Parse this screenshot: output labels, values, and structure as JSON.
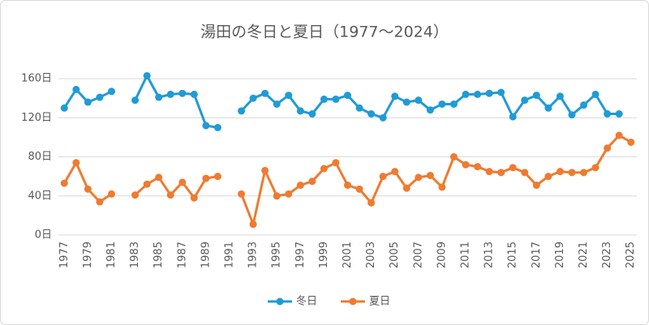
{
  "chart_data": {
    "type": "line",
    "title": "湯田の冬日と夏日（1977～2024）",
    "categories": [
      "1977",
      null,
      "1979",
      null,
      "1981",
      null,
      "1983",
      null,
      "1985",
      null,
      "1987",
      null,
      "1989",
      null,
      "1991",
      null,
      "1993",
      null,
      "1995",
      null,
      "1997",
      null,
      "1999",
      null,
      "2001",
      null,
      "2003",
      null,
      "2005",
      null,
      "2007",
      null,
      "2009",
      null,
      "2011",
      null,
      "2013",
      null,
      "2015",
      null,
      "2017",
      null,
      "2019",
      null,
      "2021",
      null,
      "2023",
      null,
      "2025"
    ],
    "series": [
      {
        "name": "冬日",
        "color": "#1f9bd7",
        "values": [
          130,
          149,
          136,
          141,
          147,
          null,
          138,
          163,
          141,
          144,
          145,
          144,
          112,
          110,
          null,
          127,
          140,
          145,
          134,
          143,
          127,
          124,
          139,
          139,
          143,
          130,
          124,
          120,
          142,
          136,
          138,
          128,
          134,
          134,
          144,
          144,
          145,
          146,
          121,
          138,
          143,
          130,
          142,
          123,
          133,
          144,
          124,
          124,
          null
        ]
      },
      {
        "name": "夏日",
        "color": "#ee7b30",
        "values": [
          53,
          74,
          47,
          34,
          42,
          null,
          41,
          52,
          59,
          41,
          54,
          38,
          58,
          60,
          null,
          42,
          11,
          66,
          40,
          42,
          51,
          55,
          68,
          74,
          51,
          47,
          33,
          60,
          65,
          48,
          59,
          61,
          49,
          80,
          72,
          70,
          65,
          64,
          69,
          64,
          51,
          60,
          65,
          64,
          64,
          69,
          89,
          102,
          95
        ]
      }
    ],
    "ylim": [
      0,
      180
    ],
    "yticks": [
      {
        "value": 0,
        "label": "0日"
      },
      {
        "value": 40,
        "label": "40日"
      },
      {
        "value": 80,
        "label": "80日"
      },
      {
        "value": 120,
        "label": "120日"
      },
      {
        "value": 160,
        "label": "160日"
      }
    ],
    "grid": true,
    "legend": "bottom"
  }
}
